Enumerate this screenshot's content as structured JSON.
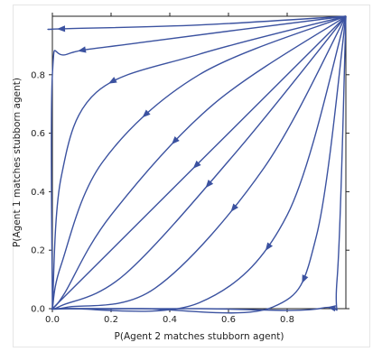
{
  "chart_data": {
    "type": "line",
    "title": "",
    "xlabel": "P(Agent 2 matches stubborn agent)",
    "ylabel": "P(Agent 1 matches stubborn agent)",
    "xlim": [
      0,
      1
    ],
    "ylim": [
      0,
      1
    ],
    "xticks": [
      "0.0",
      "0.2",
      "0.4",
      "0.6",
      "0.8"
    ],
    "yticks": [
      "0.0",
      "0.2",
      "0.4",
      "0.6",
      "0.8"
    ],
    "grid": false,
    "line_color": "#3b52a0",
    "direction": "trajectories run from (1, 1) toward the x = 0 or y = 0 axis",
    "series": [
      {
        "points": [
          [
            1,
            1
          ],
          [
            0.5,
            0.97
          ],
          [
            0.03,
            0.957
          ],
          [
            0,
            0.955
          ]
        ],
        "arrow": [
          0.03,
          0.957
        ]
      },
      {
        "points": [
          [
            1,
            1
          ],
          [
            0.3,
            0.91
          ],
          [
            0.05,
            0.87
          ],
          [
            0,
            0.8
          ],
          [
            0,
            0
          ]
        ],
        "arrow": [
          0.1,
          0.885
        ]
      },
      {
        "points": [
          [
            1,
            1
          ],
          [
            0.5,
            0.87
          ],
          [
            0.15,
            0.74
          ],
          [
            0.03,
            0.45
          ],
          [
            0,
            0
          ]
        ],
        "arrow": [
          0.2,
          0.785
        ]
      },
      {
        "points": [
          [
            1,
            1
          ],
          [
            0.5,
            0.8
          ],
          [
            0.17,
            0.5
          ],
          [
            0.03,
            0.15
          ],
          [
            0,
            0
          ]
        ],
        "arrow": [
          0.31,
          0.67
        ]
      },
      {
        "points": [
          [
            1,
            1
          ],
          [
            0.55,
            0.7
          ],
          [
            0.2,
            0.32
          ],
          [
            0.04,
            0.05
          ],
          [
            0,
            0
          ]
        ],
        "arrow": [
          0.42,
          0.57
        ]
      },
      {
        "points": [
          [
            1,
            1
          ],
          [
            0.55,
            0.55
          ],
          [
            0.2,
            0.2
          ],
          [
            0,
            0
          ]
        ],
        "arrow": [
          0.49,
          0.49
        ]
      },
      {
        "points": [
          [
            1,
            1
          ],
          [
            0.63,
            0.54
          ],
          [
            0.25,
            0.12
          ],
          [
            0.03,
            0.01
          ],
          [
            0,
            0
          ]
        ],
        "arrow": [
          0.56,
          0.4
        ]
      },
      {
        "points": [
          [
            1,
            1
          ],
          [
            0.72,
            0.48
          ],
          [
            0.35,
            0.07
          ],
          [
            0.05,
            0.005
          ],
          [
            0,
            0
          ]
        ],
        "arrow": [
          0.67,
          0.3
        ]
      },
      {
        "points": [
          [
            1,
            1
          ],
          [
            0.8,
            0.32
          ],
          [
            0.5,
            0.02
          ],
          [
            0.05,
            0
          ],
          [
            0,
            0
          ]
        ],
        "arrow": [
          0.78,
          0.18
        ]
      },
      {
        "points": [
          [
            1,
            1
          ],
          [
            0.9,
            0.25
          ],
          [
            0.75,
            0.005
          ],
          [
            0.3,
            0
          ],
          [
            0,
            0
          ]
        ],
        "arrow": [
          0.88,
          0.09
        ]
      },
      {
        "points": [
          [
            1,
            1
          ],
          [
            0.97,
            0.1
          ],
          [
            0.92,
            0.002
          ],
          [
            0.5,
            0
          ],
          [
            0,
            0
          ]
        ],
        "arrow": [
          0.955,
          0.01
        ]
      }
    ]
  }
}
